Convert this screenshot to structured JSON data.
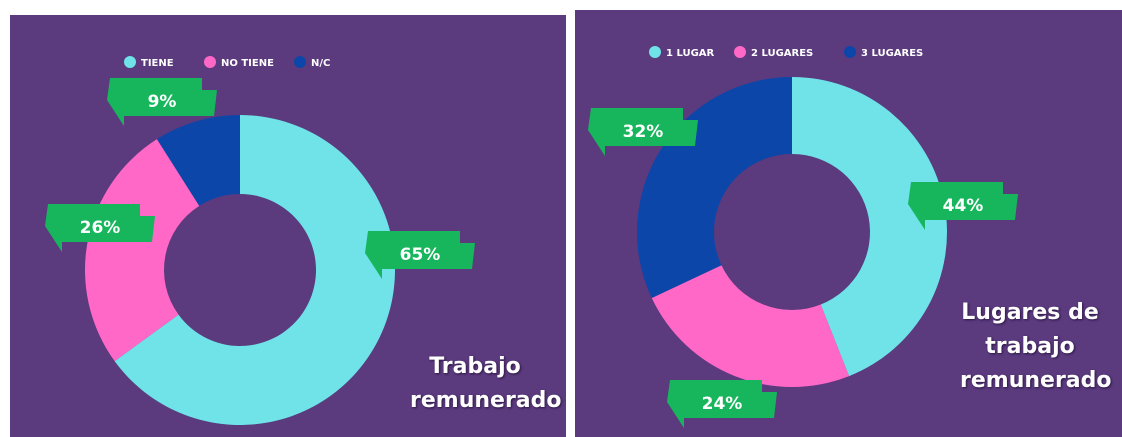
{
  "chart_data": [
    {
      "type": "donut",
      "title": "Trabajo remunerado",
      "categories": [
        "TIENE",
        "NO TIENE",
        "N/C"
      ],
      "values": [
        65,
        26,
        9
      ],
      "value_labels": [
        "65%",
        "26%",
        "9%"
      ],
      "colors": [
        "#6fe3e8",
        "#ff68c6",
        "#0c46a9"
      ],
      "legend": "top"
    },
    {
      "type": "donut",
      "title": "Lugares de trabajo remunerado",
      "categories": [
        "1 LUGAR",
        "2 LUGARES",
        "3 LUGARES"
      ],
      "values": [
        44,
        24,
        32
      ],
      "value_labels": [
        "44%",
        "24%",
        "32%"
      ],
      "colors": [
        "#6fe3e8",
        "#ff68c6",
        "#0c46a9"
      ],
      "legend": "top"
    }
  ]
}
